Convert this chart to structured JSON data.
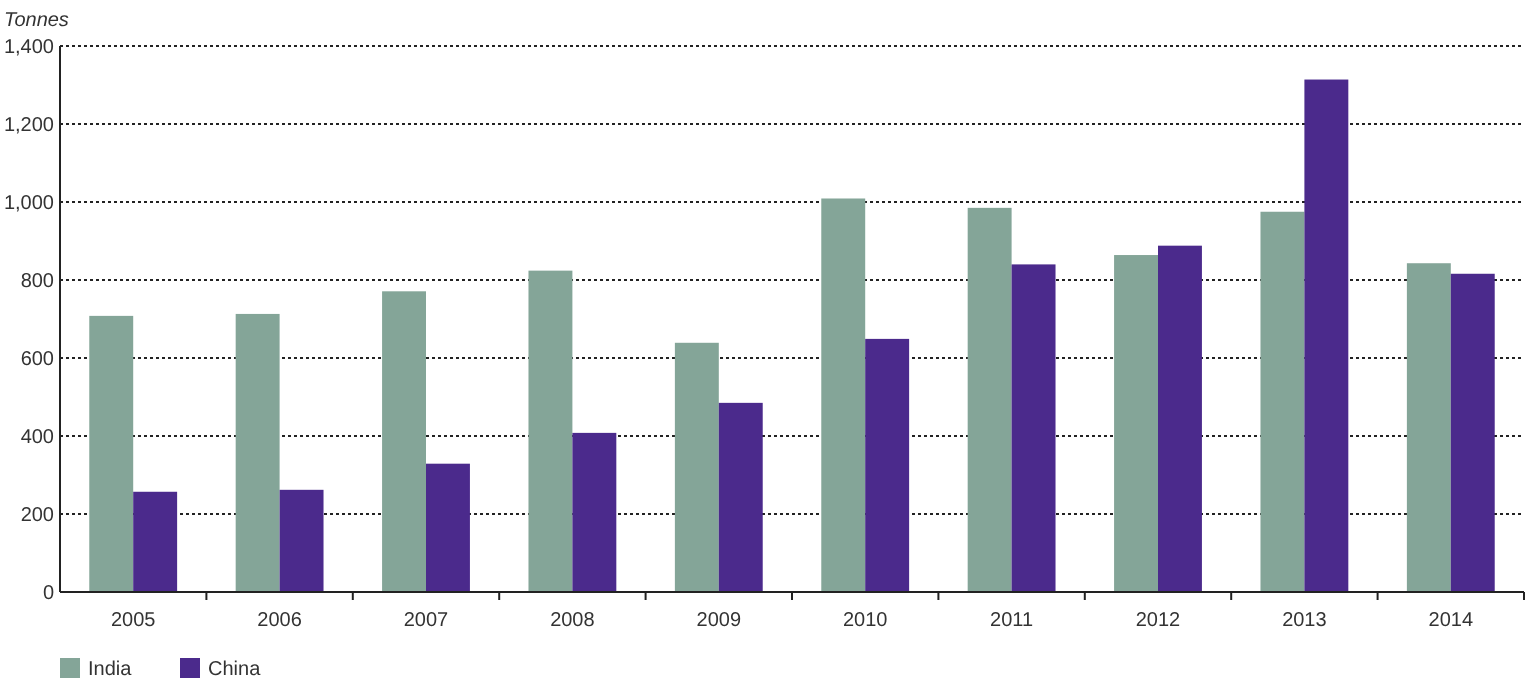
{
  "chart_data": {
    "type": "bar",
    "ylabel": "Tonnes",
    "categories": [
      "2005",
      "2006",
      "2007",
      "2008",
      "2009",
      "2010",
      "2011",
      "2012",
      "2013",
      "2014"
    ],
    "series": [
      {
        "name": "India",
        "color": "#84a598",
        "values": [
          708,
          713,
          771,
          824,
          639,
          1009,
          985,
          864,
          975,
          843
        ]
      },
      {
        "name": "China",
        "color": "#4b2a8c",
        "values": [
          257,
          262,
          329,
          408,
          485,
          649,
          840,
          888,
          1314,
          816
        ]
      }
    ],
    "ylim": [
      0,
      1400
    ],
    "yticks": [
      0,
      {
        "value": 200,
        "label": "200"
      },
      {
        "value": 400,
        "label": "400"
      },
      {
        "value": 600,
        "label": "600"
      },
      {
        "value": 800,
        "label": "800"
      },
      {
        "value": 1000,
        "label": "1,000"
      },
      {
        "value": 1200,
        "label": "1,200"
      },
      {
        "value": 1400,
        "label": "1,400"
      }
    ],
    "grid": "y",
    "legend": "bottom left"
  }
}
